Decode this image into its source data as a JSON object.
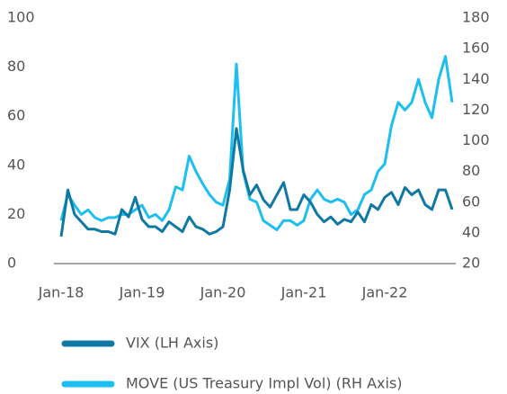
{
  "chart_data": {
    "type": "line",
    "categories": [
      "Jan-18",
      null,
      null,
      null,
      null,
      null,
      null,
      null,
      null,
      null,
      null,
      null,
      "Jan-19",
      null,
      null,
      null,
      null,
      null,
      null,
      null,
      null,
      null,
      null,
      null,
      "Jan-20",
      null,
      null,
      null,
      null,
      null,
      null,
      null,
      null,
      null,
      null,
      null,
      "Jan-21",
      null,
      null,
      null,
      null,
      null,
      null,
      null,
      null,
      null,
      null,
      null,
      "Jan-22",
      null,
      null,
      null,
      null,
      null,
      null,
      null,
      null,
      null,
      null
    ],
    "series": [
      {
        "name": "VIX (LH Axis)",
        "color": "#0f78a3",
        "axis": "y",
        "values": [
          11,
          30,
          20,
          17,
          14,
          14,
          13,
          13,
          12,
          22,
          19,
          27,
          18,
          15,
          15,
          13,
          17,
          15,
          13,
          19,
          15,
          14,
          12,
          13,
          15,
          30,
          55,
          38,
          28,
          32,
          26,
          23,
          28,
          33,
          22,
          22,
          28,
          25,
          20,
          17,
          19,
          16,
          18,
          17,
          21,
          17,
          24,
          22,
          27,
          29,
          24,
          31,
          28,
          30,
          24,
          22,
          30,
          30,
          22
        ]
      },
      {
        "name": "MOVE (US Treasury Impl Vol) (RH Axis)",
        "color": "#1dbff0",
        "axis": "y2",
        "values": [
          48,
          65,
          58,
          52,
          55,
          50,
          48,
          50,
          50,
          52,
          52,
          55,
          58,
          50,
          52,
          48,
          55,
          70,
          68,
          90,
          80,
          72,
          65,
          60,
          58,
          75,
          150,
          80,
          62,
          60,
          48,
          45,
          42,
          48,
          48,
          45,
          48,
          62,
          68,
          62,
          60,
          62,
          60,
          52,
          55,
          65,
          68,
          80,
          85,
          110,
          125,
          120,
          125,
          140,
          125,
          115,
          140,
          155,
          125
        ]
      }
    ],
    "ylim": [
      0,
      100
    ],
    "yticks": [
      0,
      20,
      40,
      60,
      80,
      100
    ],
    "y2lim": [
      20,
      180
    ],
    "y2ticks": [
      20,
      40,
      60,
      80,
      100,
      120,
      140,
      160,
      180
    ]
  }
}
